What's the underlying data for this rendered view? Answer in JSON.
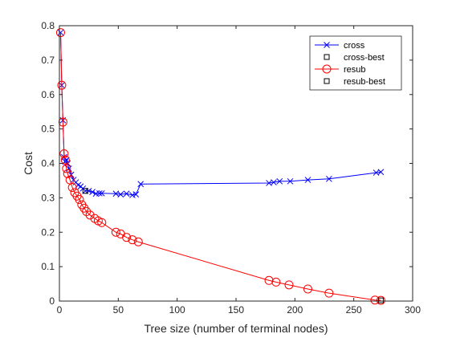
{
  "chart_data": {
    "type": "line",
    "xlabel": "Tree size (number of terminal nodes)",
    "ylabel": "Cost",
    "xlim": [
      0,
      300
    ],
    "ylim": [
      0,
      0.8
    ],
    "xticks": [
      0,
      50,
      100,
      150,
      200,
      250,
      300
    ],
    "yticks": [
      0,
      0.1,
      0.2,
      0.3,
      0.4,
      0.5,
      0.6,
      0.7,
      0.8
    ],
    "xtick_labels": [
      "0",
      "50",
      "100",
      "150",
      "200",
      "250",
      "300"
    ],
    "ytick_labels": [
      "0",
      "0.1",
      "0.2",
      "0.3",
      "0.4",
      "0.5",
      "0.6",
      "0.7",
      "0.8"
    ],
    "grid": false,
    "legend_position": "top-right",
    "series": [
      {
        "name": "cross",
        "color": "#0000ff",
        "marker": "x",
        "x": [
          1,
          2,
          3,
          4,
          5,
          6,
          7,
          8,
          10,
          12,
          14,
          16,
          18,
          20,
          22,
          25,
          28,
          31,
          34,
          36,
          48,
          52,
          57,
          62,
          65,
          69,
          178,
          182,
          187,
          196,
          211,
          229,
          269,
          273
        ],
        "y": [
          0.78,
          0.627,
          0.525,
          0.418,
          0.405,
          0.41,
          0.4,
          0.385,
          0.367,
          0.352,
          0.345,
          0.337,
          0.333,
          0.327,
          0.32,
          0.32,
          0.317,
          0.312,
          0.313,
          0.313,
          0.312,
          0.31,
          0.312,
          0.308,
          0.31,
          0.34,
          0.343,
          0.345,
          0.348,
          0.348,
          0.352,
          0.355,
          0.373,
          0.375
        ]
      },
      {
        "name": "cross-best",
        "color": "#000000",
        "marker": "square",
        "x": [
          22
        ],
        "y": [
          0.32
        ]
      },
      {
        "name": "resub",
        "color": "#ff0000",
        "marker": "o",
        "x": [
          1,
          2,
          3,
          4,
          5,
          6,
          7,
          9,
          11,
          13,
          15,
          17,
          19,
          21,
          23,
          26,
          30,
          33,
          36,
          48,
          52,
          57,
          62,
          67,
          178,
          184,
          195,
          211,
          229,
          268,
          273
        ],
        "y": [
          0.78,
          0.627,
          0.52,
          0.428,
          0.41,
          0.385,
          0.37,
          0.352,
          0.33,
          0.315,
          0.305,
          0.295,
          0.28,
          0.27,
          0.26,
          0.25,
          0.24,
          0.233,
          0.228,
          0.2,
          0.195,
          0.185,
          0.178,
          0.172,
          0.06,
          0.055,
          0.047,
          0.035,
          0.023,
          0.003,
          0.002
        ]
      },
      {
        "name": "resub-best",
        "color": "#000000",
        "marker": "square",
        "x": [
          273
        ],
        "y": [
          0.002
        ]
      }
    ]
  }
}
